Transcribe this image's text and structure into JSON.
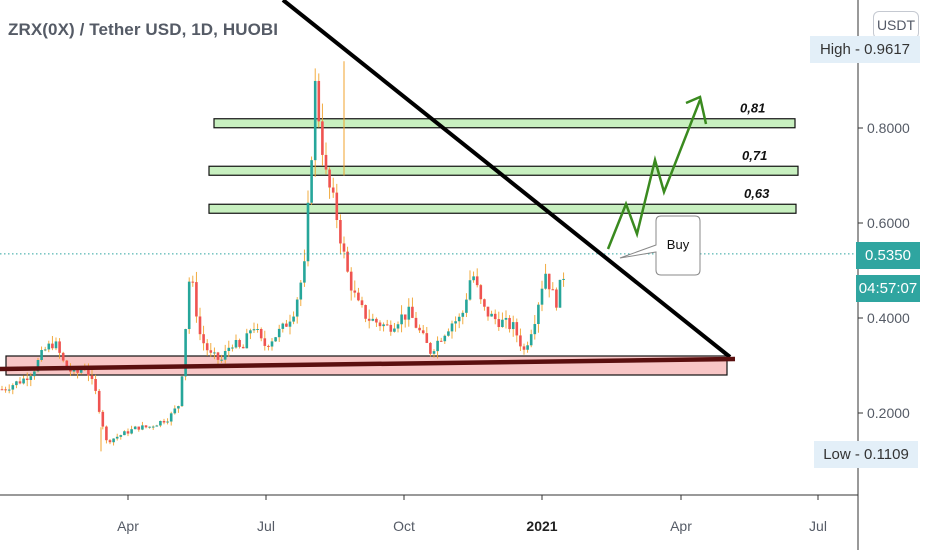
{
  "header": {
    "title": "ZRX(0X) / Tether USD, 1D, HUOBI",
    "unit": "USDT"
  },
  "price_tags": {
    "high": "High - 0.9617",
    "low": "Low - 0.1109",
    "last": "0.5350",
    "countdown": "04:57:07"
  },
  "colors": {
    "up": "#26a69a",
    "down": "#ef5350",
    "wick": "#f0a32d",
    "resistance_zone": "#c8f0c0",
    "support_zone": "#f8c6c6",
    "trendline": "#000000",
    "projection_arrow": "#3a8a1f",
    "last_price": "#2fa5a0"
  },
  "annotations": {
    "buy_label": "Buy",
    "levels": [
      {
        "label": "0,81",
        "value": 0.81
      },
      {
        "label": "0,71",
        "value": 0.71
      },
      {
        "label": "0,63",
        "value": 0.63
      }
    ]
  },
  "chart_data": {
    "type": "line",
    "title": "ZRX(0X) / Tether USD, 1D, HUOBI",
    "xlabel": "",
    "ylabel": "",
    "x_ticks": [
      "Apr",
      "Jul",
      "Oct",
      "2021",
      "Apr",
      "Jul"
    ],
    "y_ticks": [
      "0.2000",
      "0.4000",
      "0.6000",
      "0.8000"
    ],
    "ylim": [
      0.05,
      1.05
    ],
    "grid": false,
    "series": [
      {
        "values": [
          0.25,
          0.26,
          0.27,
          0.29,
          0.33,
          0.35,
          0.3,
          0.28,
          0.3,
          0.24,
          0.14,
          0.15,
          0.16,
          0.17,
          0.17,
          0.18,
          0.19,
          0.22,
          0.5,
          0.36,
          0.32,
          0.31,
          0.35,
          0.33,
          0.39,
          0.34,
          0.36,
          0.38,
          0.42,
          0.51,
          0.89,
          0.7,
          0.62,
          0.5,
          0.43,
          0.4,
          0.39,
          0.38,
          0.4,
          0.41,
          0.37,
          0.33,
          0.36,
          0.39,
          0.4,
          0.5,
          0.42,
          0.4,
          0.39,
          0.38,
          0.33,
          0.4,
          0.5,
          0.43,
          0.51
        ]
      }
    ],
    "extremes": {
      "high": 0.9617,
      "low": 0.1109
    },
    "resistance_zones": [
      0.81,
      0.71,
      0.63
    ],
    "support_zone": [
      0.28,
      0.32
    ],
    "last_price": 0.535
  }
}
